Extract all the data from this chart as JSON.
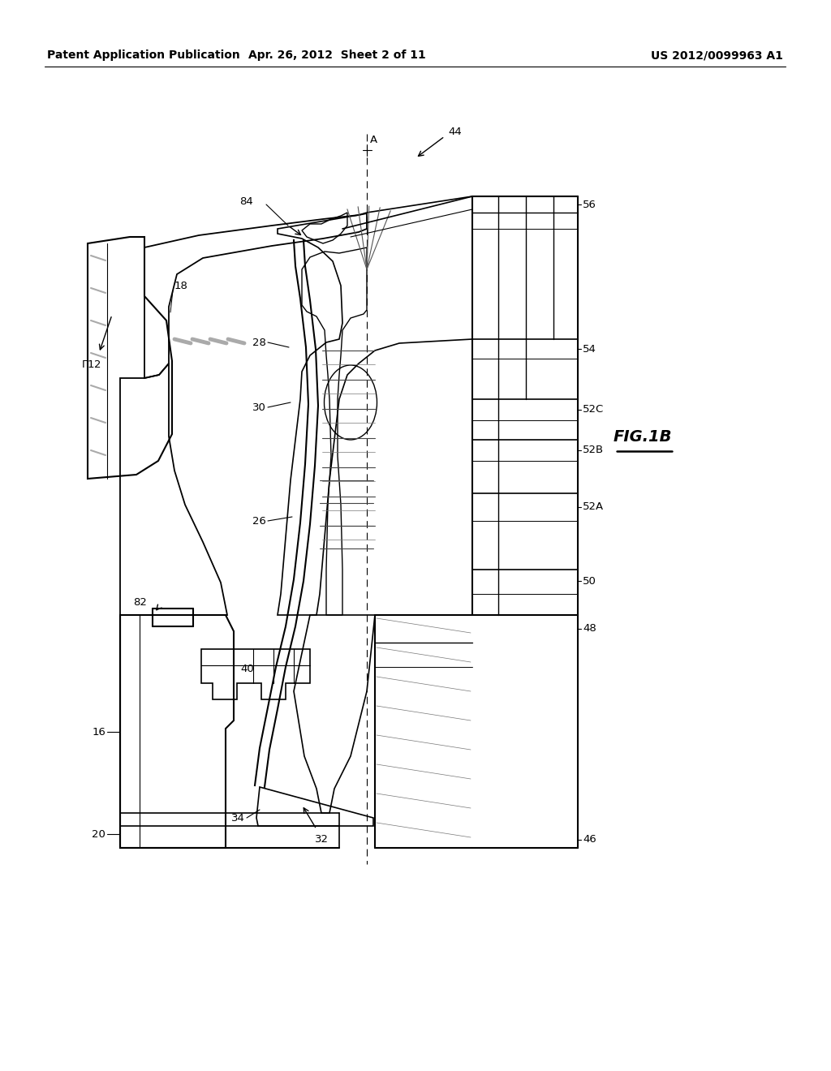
{
  "bg_color": "#ffffff",
  "header_left": "Patent Application Publication",
  "header_center": "Apr. 26, 2012  Sheet 2 of 11",
  "header_right": "US 2012/0099963 A1",
  "fig_label": "FIG.1B",
  "line_color": "#000000",
  "gray_color": "#888888",
  "light_gray": "#cccccc"
}
